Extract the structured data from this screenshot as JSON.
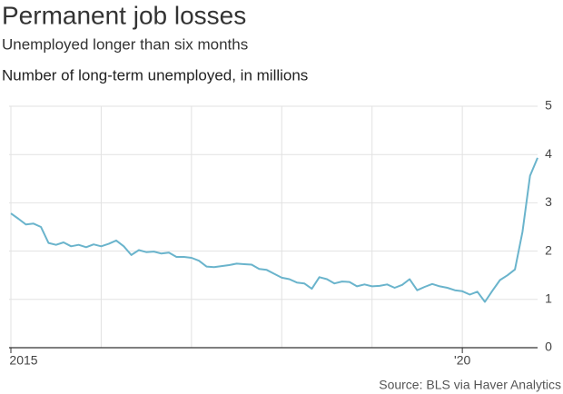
{
  "chart_data": {
    "type": "line",
    "title": "Permanent job losses",
    "subtitle": "Unemployed longer than six months",
    "axis_label": "Number of long-term unemployed, in millions",
    "source": "Source: BLS via Haver Analytics",
    "categories": [
      "2015",
      null,
      null,
      null,
      null,
      null,
      null,
      null,
      null,
      null,
      null,
      null,
      null,
      null,
      null,
      null,
      null,
      null,
      null,
      null,
      null,
      null,
      null,
      null,
      null,
      null,
      null,
      null,
      null,
      null,
      null,
      null,
      null,
      null,
      null,
      null,
      null,
      null,
      null,
      null,
      null,
      null,
      null,
      null,
      null,
      null,
      null,
      null,
      null,
      null,
      null,
      null,
      null,
      null,
      null,
      null,
      null,
      null,
      null,
      null,
      "'20",
      null,
      null,
      null,
      null,
      null,
      null,
      null,
      null,
      null,
      null
    ],
    "series": [
      {
        "name": "Long-term unemployed",
        "color": "#6ab4cc",
        "values": [
          2.78,
          2.67,
          2.55,
          2.57,
          2.5,
          2.17,
          2.13,
          2.18,
          2.1,
          2.13,
          2.08,
          2.14,
          2.1,
          2.15,
          2.22,
          2.1,
          1.92,
          2.02,
          1.98,
          1.99,
          1.95,
          1.97,
          1.88,
          1.88,
          1.86,
          1.8,
          1.68,
          1.67,
          1.69,
          1.71,
          1.74,
          1.73,
          1.72,
          1.63,
          1.61,
          1.53,
          1.45,
          1.42,
          1.35,
          1.33,
          1.22,
          1.46,
          1.42,
          1.33,
          1.37,
          1.36,
          1.27,
          1.31,
          1.27,
          1.28,
          1.31,
          1.24,
          1.3,
          1.42,
          1.19,
          1.26,
          1.32,
          1.27,
          1.24,
          1.19,
          1.17,
          1.1,
          1.16,
          0.95,
          1.18,
          1.4,
          1.5,
          1.62,
          2.4,
          3.56,
          3.93
        ]
      }
    ],
    "ylim": [
      0,
      5
    ],
    "yticks": [
      0,
      1,
      2,
      3,
      4,
      5
    ],
    "grid": true
  }
}
